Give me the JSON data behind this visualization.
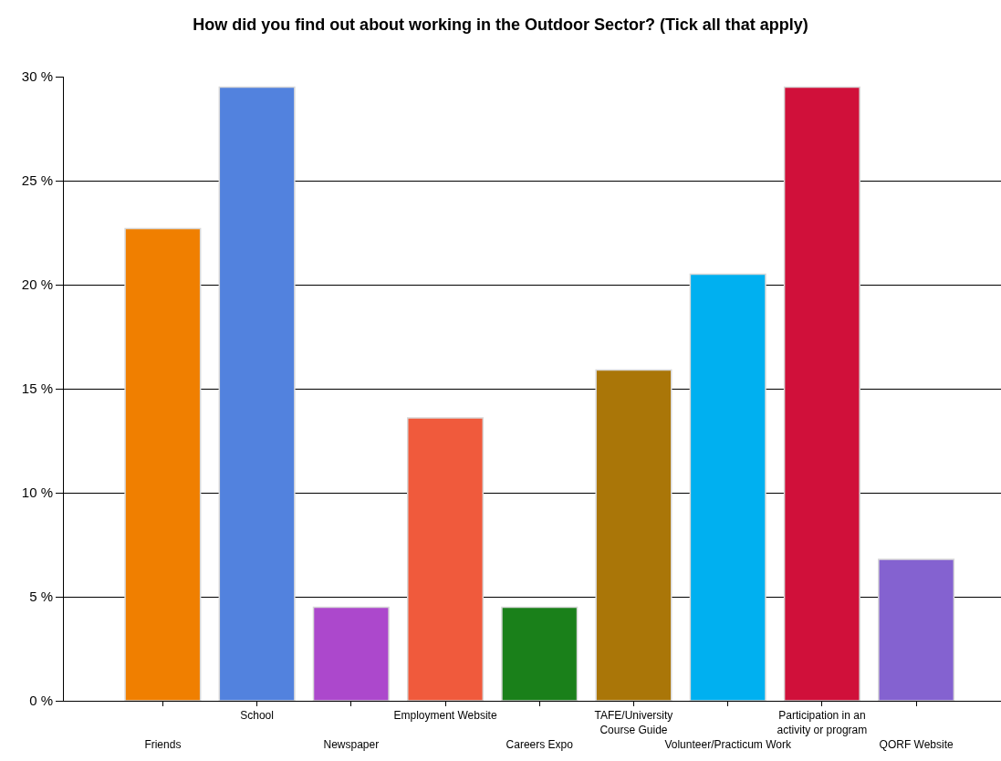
{
  "chart_data": {
    "type": "bar",
    "title": "How did you find out about working in the Outdoor Sector? (Tick all that apply)",
    "categories": [
      "Friends",
      "School",
      "Newspaper",
      "Employment Website",
      "Careers Expo",
      "TAFE/University Course Guide",
      "Volunteer/Practicum Work",
      "Participation in an activity or program",
      "QORF Website"
    ],
    "values": [
      22.7,
      29.5,
      4.5,
      13.6,
      4.5,
      15.9,
      20.5,
      29.5,
      6.8
    ],
    "colors": [
      "#f07f00",
      "#5282de",
      "#ac48cc",
      "#f05a3c",
      "#1a801a",
      "#aa7608",
      "#00b0f0",
      "#d0103a",
      "#8462d0"
    ],
    "ylim": [
      0,
      30
    ],
    "yticks": [
      {
        "value": 0,
        "label": "0 %"
      },
      {
        "value": 5,
        "label": "5 %"
      },
      {
        "value": 10,
        "label": "10 %"
      },
      {
        "value": 15,
        "label": "15 %"
      },
      {
        "value": 20,
        "label": "20 %"
      },
      {
        "value": 25,
        "label": "25 %"
      },
      {
        "value": 30,
        "label": "30 %"
      }
    ],
    "grid": "y"
  }
}
